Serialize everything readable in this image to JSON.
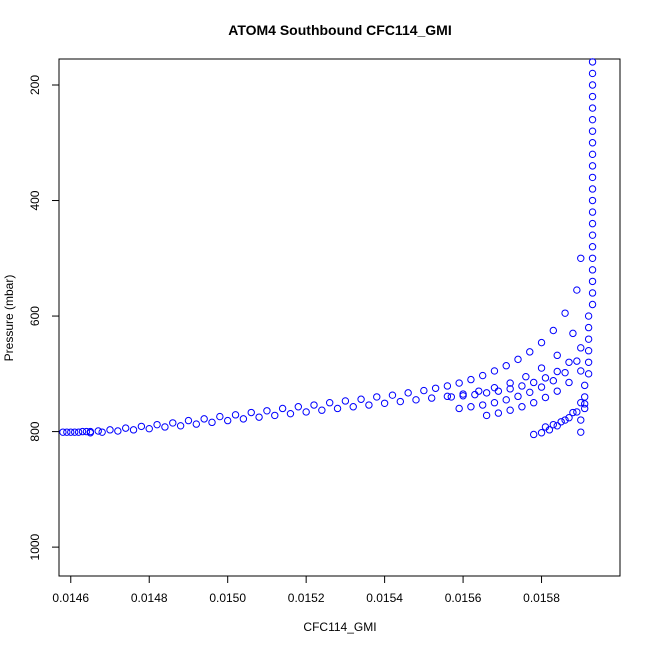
{
  "chart_data": {
    "type": "scatter",
    "title": "ATOM4 Southbound CFC114_GMI",
    "xlabel": "CFC114_GMI",
    "ylabel": "Pressure (mbar)",
    "xlim": [
      0.01457,
      0.016
    ],
    "ylim": [
      1050,
      155
    ],
    "y_reversed": true,
    "x_ticks": [
      0.0146,
      0.0148,
      0.015,
      0.0152,
      0.0154,
      0.0156,
      0.0158
    ],
    "x_tick_labels": [
      "0.0146",
      "0.0148",
      "0.0150",
      "0.0152",
      "0.0154",
      "0.0156",
      "0.0158"
    ],
    "y_ticks": [
      200,
      400,
      600,
      800,
      1000
    ],
    "y_tick_labels": [
      "200",
      "400",
      "600",
      "800",
      "1000"
    ],
    "marker": "open-circle",
    "color": "#0000ff",
    "grid": false,
    "series": [
      {
        "points": [
          [
            0.01458,
            801
          ],
          [
            0.01459,
            801
          ],
          [
            0.0146,
            801
          ],
          [
            0.01461,
            801
          ],
          [
            0.01462,
            801
          ],
          [
            0.01463,
            800
          ],
          [
            0.01464,
            800
          ],
          [
            0.01465,
            800
          ],
          [
            0.01467,
            799
          ],
          [
            0.0147,
            797
          ],
          [
            0.01474,
            794
          ],
          [
            0.01478,
            791
          ],
          [
            0.01482,
            788
          ],
          [
            0.01486,
            785
          ],
          [
            0.0149,
            781
          ],
          [
            0.01494,
            778
          ],
          [
            0.01498,
            774
          ],
          [
            0.01502,
            771
          ],
          [
            0.01506,
            767
          ],
          [
            0.0151,
            764
          ],
          [
            0.01514,
            760
          ],
          [
            0.01518,
            757
          ],
          [
            0.01522,
            754
          ],
          [
            0.01526,
            750
          ],
          [
            0.0153,
            747
          ],
          [
            0.01534,
            744
          ],
          [
            0.01538,
            740
          ],
          [
            0.01542,
            737
          ],
          [
            0.01546,
            733
          ],
          [
            0.0155,
            729
          ],
          [
            0.01553,
            725
          ],
          [
            0.01556,
            721
          ],
          [
            0.01559,
            716
          ],
          [
            0.01562,
            710
          ],
          [
            0.01565,
            703
          ],
          [
            0.01568,
            695
          ],
          [
            0.01571,
            686
          ],
          [
            0.01574,
            675
          ],
          [
            0.01577,
            662
          ],
          [
            0.0158,
            646
          ],
          [
            0.01583,
            625
          ],
          [
            0.01586,
            595
          ],
          [
            0.01589,
            555
          ],
          [
            0.0159,
            500
          ]
        ]
      },
      {
        "points": [
          [
            0.01465,
            802
          ],
          [
            0.01468,
            801
          ],
          [
            0.01472,
            799
          ],
          [
            0.01476,
            797
          ],
          [
            0.0148,
            795
          ],
          [
            0.01484,
            792
          ],
          [
            0.01488,
            790
          ],
          [
            0.01492,
            787
          ],
          [
            0.01496,
            784
          ],
          [
            0.015,
            781
          ],
          [
            0.01504,
            778
          ],
          [
            0.01508,
            775
          ],
          [
            0.01512,
            772
          ],
          [
            0.01516,
            769
          ],
          [
            0.0152,
            766
          ],
          [
            0.01524,
            763
          ],
          [
            0.01528,
            760
          ],
          [
            0.01532,
            757
          ],
          [
            0.01536,
            754
          ],
          [
            0.0154,
            751
          ],
          [
            0.01544,
            748
          ],
          [
            0.01548,
            745
          ],
          [
            0.01552,
            742
          ],
          [
            0.01556,
            739
          ],
          [
            0.0156,
            735
          ],
          [
            0.01564,
            730
          ],
          [
            0.01568,
            724
          ],
          [
            0.01572,
            716
          ],
          [
            0.01576,
            705
          ],
          [
            0.0158,
            690
          ],
          [
            0.01584,
            668
          ],
          [
            0.01588,
            630
          ]
        ]
      },
      {
        "points": [
          [
            0.01557,
            740
          ],
          [
            0.0156,
            738
          ],
          [
            0.01563,
            736
          ],
          [
            0.01566,
            733
          ],
          [
            0.01569,
            730
          ],
          [
            0.01572,
            726
          ],
          [
            0.01575,
            721
          ],
          [
            0.01578,
            715
          ],
          [
            0.01581,
            707
          ],
          [
            0.01584,
            696
          ],
          [
            0.01587,
            680
          ],
          [
            0.0159,
            655
          ]
        ]
      },
      {
        "points": [
          [
            0.01559,
            760
          ],
          [
            0.01562,
            757
          ],
          [
            0.01565,
            754
          ],
          [
            0.01568,
            750
          ],
          [
            0.01571,
            745
          ],
          [
            0.01574,
            739
          ],
          [
            0.01577,
            732
          ],
          [
            0.0158,
            723
          ],
          [
            0.01583,
            712
          ],
          [
            0.01586,
            698
          ],
          [
            0.01589,
            678
          ]
        ]
      },
      {
        "points": [
          [
            0.01566,
            772
          ],
          [
            0.01569,
            768
          ],
          [
            0.01572,
            763
          ],
          [
            0.01575,
            757
          ],
          [
            0.01578,
            750
          ],
          [
            0.01581,
            741
          ],
          [
            0.01584,
            730
          ],
          [
            0.01587,
            715
          ],
          [
            0.0159,
            695
          ]
        ]
      },
      {
        "points": [
          [
            0.01578,
            805
          ],
          [
            0.0158,
            802
          ],
          [
            0.01582,
            797
          ],
          [
            0.01584,
            790
          ],
          [
            0.01586,
            780
          ],
          [
            0.01588,
            767
          ],
          [
            0.0159,
            750
          ]
        ]
      },
      {
        "points": [
          [
            0.01581,
            792
          ],
          [
            0.01583,
            788
          ],
          [
            0.01585,
            783
          ],
          [
            0.01587,
            776
          ],
          [
            0.01589,
            766
          ],
          [
            0.01591,
            752
          ]
        ]
      },
      {
        "points": [
          [
            0.0159,
            801
          ],
          [
            0.0159,
            780
          ],
          [
            0.01591,
            760
          ],
          [
            0.01591,
            740
          ],
          [
            0.01591,
            720
          ],
          [
            0.01592,
            700
          ],
          [
            0.01592,
            680
          ],
          [
            0.01592,
            660
          ],
          [
            0.01592,
            640
          ],
          [
            0.01592,
            620
          ],
          [
            0.01592,
            600
          ],
          [
            0.01593,
            580
          ],
          [
            0.01593,
            560
          ],
          [
            0.01593,
            540
          ],
          [
            0.01593,
            520
          ],
          [
            0.01593,
            500
          ],
          [
            0.01593,
            480
          ],
          [
            0.01593,
            460
          ],
          [
            0.01593,
            440
          ],
          [
            0.01593,
            420
          ],
          [
            0.01593,
            400
          ],
          [
            0.01593,
            380
          ],
          [
            0.01593,
            360
          ],
          [
            0.01593,
            340
          ],
          [
            0.01593,
            320
          ],
          [
            0.01593,
            300
          ],
          [
            0.01593,
            280
          ],
          [
            0.01593,
            260
          ],
          [
            0.01593,
            240
          ],
          [
            0.01593,
            220
          ],
          [
            0.01593,
            200
          ],
          [
            0.01593,
            180
          ],
          [
            0.01593,
            160
          ]
        ]
      }
    ]
  }
}
